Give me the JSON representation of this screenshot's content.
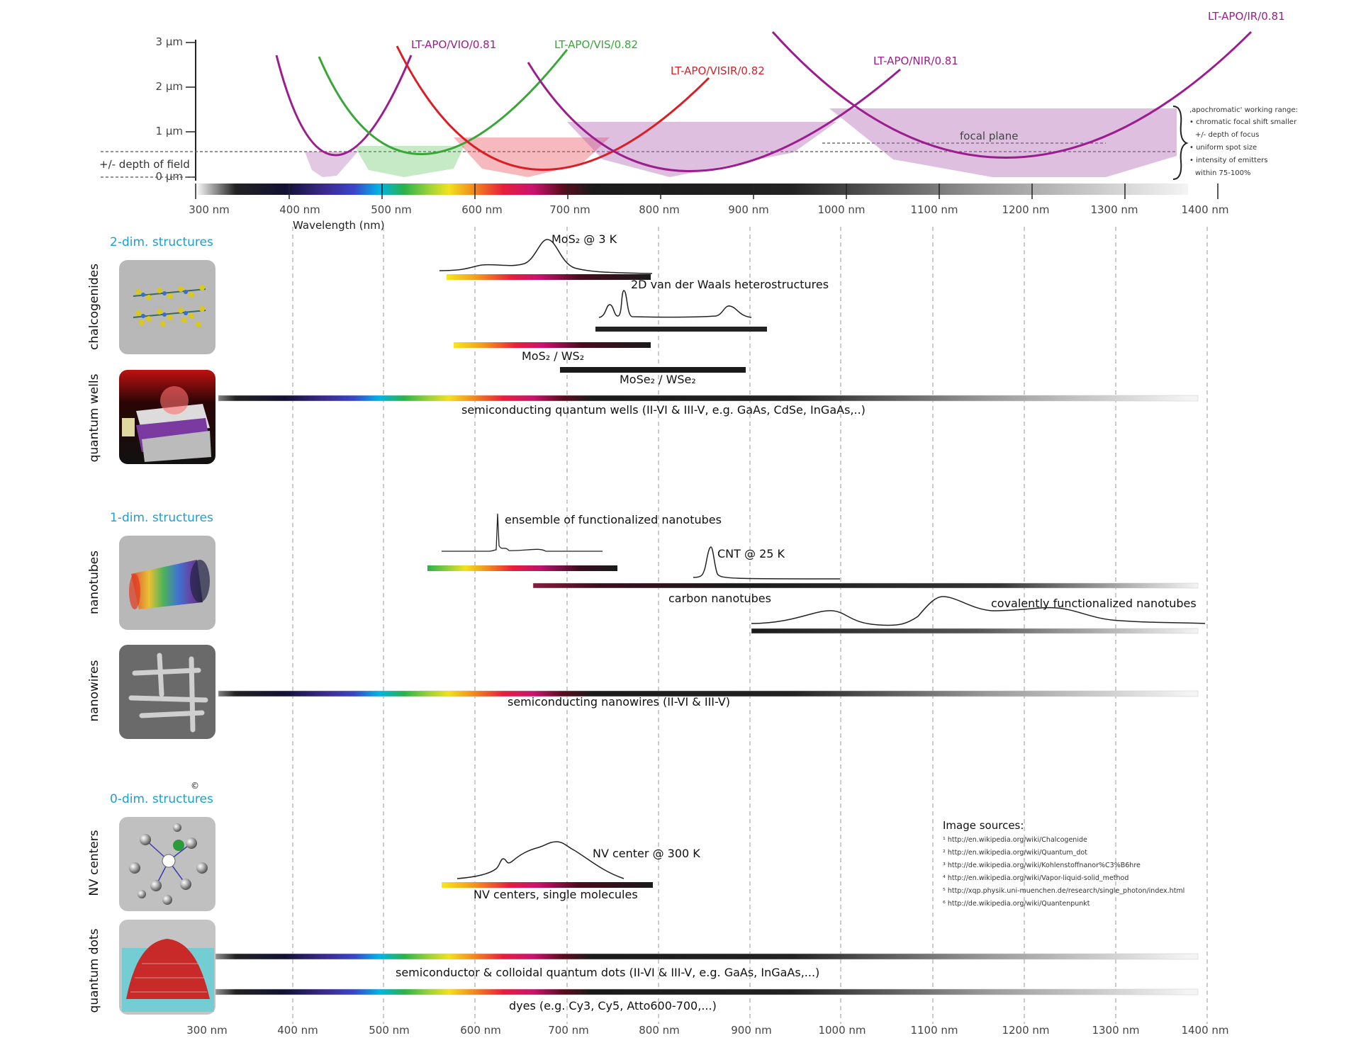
{
  "top_chart": {
    "y_ticks": [
      "3 µm",
      "2 µm",
      "1 µm",
      "0 µm"
    ],
    "depth_of_field_label": "+/- depth of field",
    "focal_plane_label": "focal plane",
    "x_axis_title": "Wavelength (nm)",
    "curves": [
      {
        "name": "LT-APO/VIO/0.81",
        "color": "#9b1d8e"
      },
      {
        "name": "LT-APO/VIS/0.82",
        "color": "#3aa63a"
      },
      {
        "name": "LT-APO/VISIR/0.82",
        "color": "#d81f26"
      },
      {
        "name": "LT-APO/NIR/0.81",
        "color": "#9b1d8e"
      },
      {
        "name": "LT-APO/IR/0.81",
        "color": "#9b1d8e"
      }
    ],
    "working_range": {
      "title": "‚apochromatic' working range:",
      "items": [
        "• chromatic focal shift smaller",
        "+/- depth of focus",
        "• uniform spot size",
        "• intensity of emitters",
        "within 75-100%"
      ]
    }
  },
  "x_ticks": [
    "300 nm",
    "400 nm",
    "500 nm",
    "600 nm",
    "700 nm",
    "800 nm",
    "900 nm",
    "1000 nm",
    "1100 nm",
    "1200 nm",
    "1300 nm",
    "1400 nm"
  ],
  "sections": {
    "two_dim": "2-dim. structures",
    "one_dim": "1-dim. structures",
    "zero_dim": "0-dim. structures"
  },
  "categories": {
    "chalcogenides": "chalcogenides",
    "quantum_wells": "quantum wells",
    "nanotubes": "nanotubes",
    "nanowires": "nanowires",
    "nv_centers": "NV centers",
    "quantum_dots": "quantum dots"
  },
  "bar_labels": {
    "mos2_3k": "MoS₂ @ 3 K",
    "vdw": "2D van der Waals heterostructures",
    "mos2_ws2": "MoS₂ / WS₂",
    "mose2_wse2": "MoSe₂ / WSe₂",
    "qw": "semiconducting quantum wells (II-VI & III-V, e.g. GaAs, CdSe, InGaAs,..)",
    "ensemble": "ensemble of functionalized nanotubes",
    "cnt25": "CNT @ 25 K",
    "carbon": "carbon nanotubes",
    "covalent": "covalently functionalized nanotubes",
    "nanowires": "semiconducting nanowires (II-VI & III-V)",
    "nv300": "NV center @ 300 K",
    "nv_single": "NV centers, single molecules",
    "qdots": "semiconductor & colloidal quantum dots (II-VI & III-V, e.g. GaAs, InGaAs,...)",
    "dyes": "dyes (e.g. Cy3, Cy5, Atto600-700,...)"
  },
  "copyright": "©",
  "sources": {
    "title": "Image sources:",
    "items": [
      "¹ http://en.wikipedia.org/wiki/Chalcogenide",
      "² http://en.wikipedia.org/wiki/Quantum_dot",
      "³ http://de.wikipedia.org/wiki/Kohlenstoffnanor%C3%B6hre",
      "⁴ http://en.wikipedia.org/wiki/Vapor-liquid-solid_method",
      "⁵ http://xqp.physik.uni-muenchen.de/research/single_photon/index.html",
      "⁶ http://de.wikipedia.org/wiki/Quantenpunkt"
    ]
  }
}
